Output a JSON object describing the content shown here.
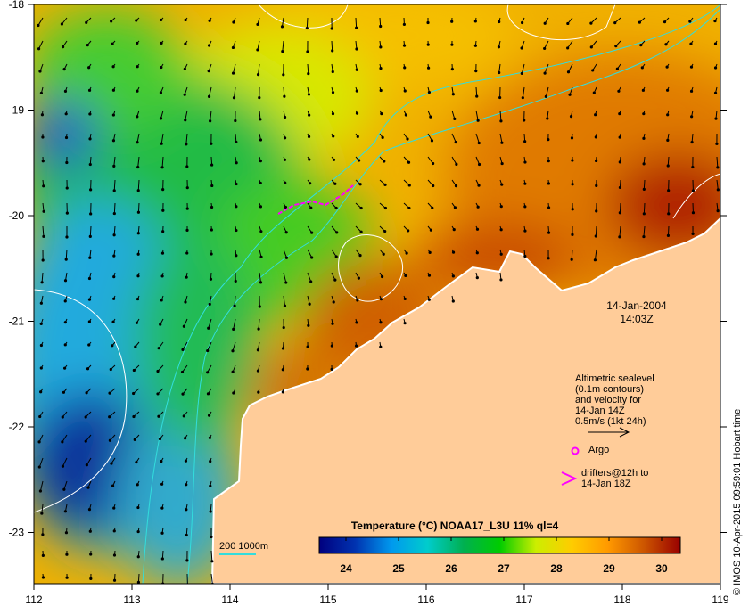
{
  "map": {
    "lon_ticks": [
      "112",
      "113",
      "114",
      "115",
      "116",
      "117",
      "118",
      "119"
    ],
    "lat_ticks": [
      "-18",
      "-19",
      "-20",
      "-21",
      "-22",
      "-23"
    ],
    "date": "14-Jan-2004",
    "time": "14:03Z",
    "legend": {
      "lines": [
        "Altimetric sealevel",
        "(0.1m contours)",
        "and velocity for",
        "14-Jan 14Z",
        "0.5m/s (1kt 24h)"
      ],
      "argo": "Argo",
      "drifters": [
        "drifters@12h to",
        "14-Jan 18Z"
      ]
    },
    "scale_label": "200  1000m",
    "colorbar": {
      "title": "Temperature (°C) NOAA17_L3U 11% ql=4",
      "ticks": [
        "24",
        "25",
        "26",
        "27",
        "28",
        "29",
        "30"
      ],
      "colors": [
        "#00007f",
        "#0033b0",
        "#0099ee",
        "#00cccc",
        "#00b050",
        "#00cc00",
        "#ccee00",
        "#ffcc00",
        "#ff9900",
        "#cc5500",
        "#990000"
      ]
    },
    "credit": "© IMOS 10-Apr-2015 09:59:01 Hobart time",
    "land_color": "#ffcc99"
  }
}
